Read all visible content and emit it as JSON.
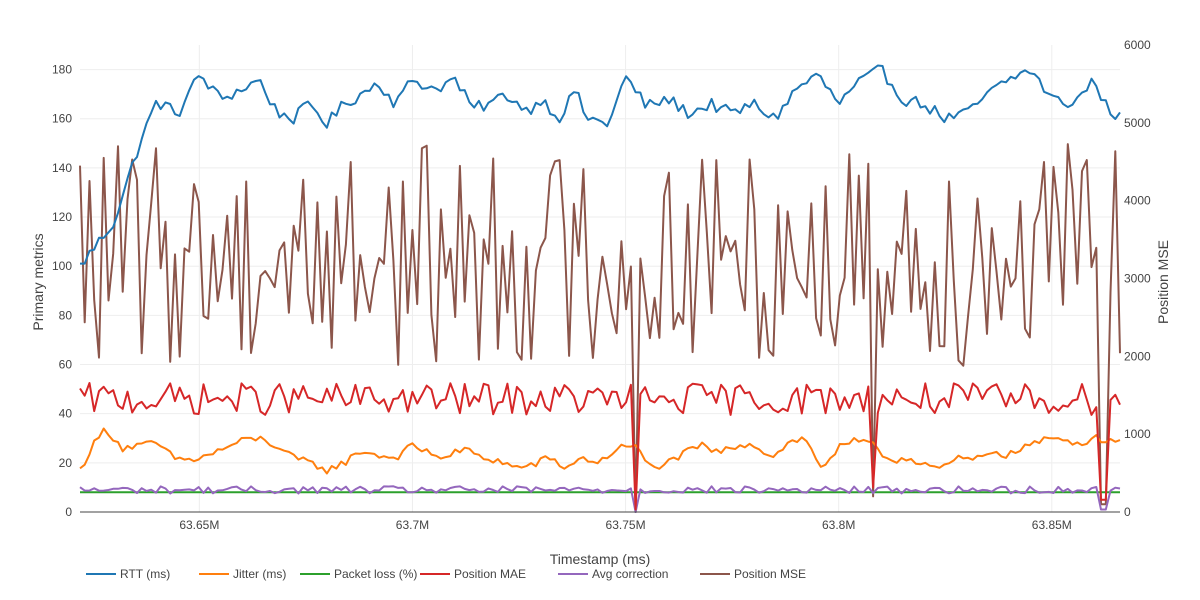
{
  "chart_data": {
    "type": "line",
    "title": "",
    "xlabel": "Timestamp (ms)",
    "ylabel": "Primary metrics",
    "y2label": "Position MSE",
    "xlim": [
      63622000,
      63866000
    ],
    "ylim": [
      0,
      190
    ],
    "y2lim": [
      0,
      6000
    ],
    "x_ticks": [
      63650000,
      63700000,
      63750000,
      63800000,
      63850000
    ],
    "x_tick_labels": [
      "63.65M",
      "63.7M",
      "63.75M",
      "63.8M",
      "63.85M"
    ],
    "y_ticks": [
      0,
      20,
      40,
      60,
      80,
      100,
      120,
      140,
      160,
      180
    ],
    "y2_ticks": [
      0,
      1000,
      2000,
      3000,
      4000,
      5000,
      6000
    ],
    "legend_position": "bottom",
    "n_points": 220,
    "series": [
      {
        "name": "RTT (ms)",
        "axis": "y",
        "color": "#1f77b4",
        "anchors": [
          [
            63622000,
            100
          ],
          [
            63630000,
            118
          ],
          [
            63636000,
            150
          ],
          [
            63640000,
            167
          ],
          [
            63645000,
            162
          ],
          [
            63650000,
            178
          ],
          [
            63655000,
            168
          ],
          [
            63660000,
            172
          ],
          [
            63664000,
            176
          ],
          [
            63668000,
            163
          ],
          [
            63672000,
            160
          ],
          [
            63676000,
            166
          ],
          [
            63680000,
            158
          ],
          [
            63684000,
            166
          ],
          [
            63688000,
            170
          ],
          [
            63692000,
            175
          ],
          [
            63696000,
            166
          ],
          [
            63700000,
            176
          ],
          [
            63705000,
            172
          ],
          [
            63710000,
            176
          ],
          [
            63714000,
            164
          ],
          [
            63718000,
            166
          ],
          [
            63722000,
            170
          ],
          [
            63727000,
            163
          ],
          [
            63730000,
            168
          ],
          [
            63735000,
            160
          ],
          [
            63738000,
            172
          ],
          [
            63741000,
            160
          ],
          [
            63746000,
            158
          ],
          [
            63750000,
            177
          ],
          [
            63755000,
            165
          ],
          [
            63760000,
            168
          ],
          [
            63765000,
            162
          ],
          [
            63770000,
            166
          ],
          [
            63775000,
            162
          ],
          [
            63780000,
            166
          ],
          [
            63785000,
            160
          ],
          [
            63790000,
            172
          ],
          [
            63795000,
            178
          ],
          [
            63800000,
            166
          ],
          [
            63805000,
            175
          ],
          [
            63810000,
            180
          ],
          [
            63815000,
            168
          ],
          [
            63820000,
            166
          ],
          [
            63825000,
            160
          ],
          [
            63830000,
            162
          ],
          [
            63835000,
            170
          ],
          [
            63840000,
            176
          ],
          [
            63845000,
            180
          ],
          [
            63850000,
            168
          ],
          [
            63855000,
            166
          ],
          [
            63860000,
            176
          ],
          [
            63864000,
            160
          ],
          [
            63866000,
            164
          ]
        ],
        "noise": 2.5
      },
      {
        "name": "Jitter (ms)",
        "axis": "y",
        "color": "#ff7f0e",
        "anchors": [
          [
            63622000,
            17
          ],
          [
            63625000,
            27
          ],
          [
            63628000,
            34
          ],
          [
            63632000,
            26
          ],
          [
            63636000,
            27
          ],
          [
            63640000,
            28
          ],
          [
            63644000,
            22
          ],
          [
            63648000,
            21
          ],
          [
            63652000,
            23
          ],
          [
            63656000,
            26
          ],
          [
            63660000,
            29
          ],
          [
            63664000,
            30
          ],
          [
            63668000,
            27
          ],
          [
            63672000,
            22
          ],
          [
            63676000,
            20
          ],
          [
            63680000,
            17
          ],
          [
            63684000,
            20
          ],
          [
            63688000,
            25
          ],
          [
            63692000,
            23
          ],
          [
            63696000,
            22
          ],
          [
            63700000,
            27
          ],
          [
            63704000,
            24
          ],
          [
            63708000,
            22
          ],
          [
            63712000,
            26
          ],
          [
            63716000,
            22
          ],
          [
            63720000,
            21
          ],
          [
            63724000,
            18
          ],
          [
            63728000,
            19
          ],
          [
            63732000,
            22
          ],
          [
            63736000,
            18
          ],
          [
            63740000,
            22
          ],
          [
            63744000,
            20
          ],
          [
            63748000,
            26
          ],
          [
            63752000,
            27
          ],
          [
            63756000,
            18
          ],
          [
            63760000,
            20
          ],
          [
            63764000,
            24
          ],
          [
            63768000,
            27
          ],
          [
            63772000,
            24
          ],
          [
            63776000,
            27
          ],
          [
            63780000,
            28
          ],
          [
            63784000,
            22
          ],
          [
            63788000,
            28
          ],
          [
            63792000,
            30
          ],
          [
            63796000,
            18
          ],
          [
            63800000,
            26
          ],
          [
            63804000,
            29
          ],
          [
            63808000,
            27
          ],
          [
            63812000,
            21
          ],
          [
            63816000,
            22
          ],
          [
            63820000,
            20
          ],
          [
            63824000,
            17
          ],
          [
            63828000,
            22
          ],
          [
            63832000,
            21
          ],
          [
            63836000,
            25
          ],
          [
            63840000,
            23
          ],
          [
            63844000,
            27
          ],
          [
            63848000,
            29
          ],
          [
            63852000,
            30
          ],
          [
            63856000,
            28
          ],
          [
            63860000,
            30
          ],
          [
            63866000,
            29
          ]
        ],
        "noise": 1.5
      },
      {
        "name": "Packet loss (%)",
        "axis": "y",
        "color": "#2ca02c",
        "anchors": [
          [
            63622000,
            8
          ],
          [
            63866000,
            8
          ]
        ],
        "noise": 0
      },
      {
        "name": "Position MAE",
        "axis": "y",
        "color": "#d62728",
        "anchors": [
          [
            63622000,
            46
          ],
          [
            63866000,
            46
          ]
        ],
        "noise": 6.5,
        "dips": [
          [
            63752000,
            1
          ],
          [
            63808000,
            10
          ],
          [
            63862000,
            5
          ]
        ]
      },
      {
        "name": "Avg correction",
        "axis": "y",
        "color": "#9467bd",
        "anchors": [
          [
            63622000,
            9
          ],
          [
            63866000,
            9
          ]
        ],
        "noise": 1.5,
        "dips": [
          [
            63752000,
            0
          ],
          [
            63862000,
            1
          ]
        ]
      },
      {
        "name": "Position MSE",
        "axis": "y2",
        "color": "#8c564b",
        "anchors": [
          [
            63622000,
            3300
          ],
          [
            63866000,
            3300
          ]
        ],
        "noise": 1300,
        "dips": [
          [
            63752000,
            0
          ],
          [
            63808000,
            200
          ],
          [
            63862000,
            100
          ]
        ]
      }
    ]
  }
}
